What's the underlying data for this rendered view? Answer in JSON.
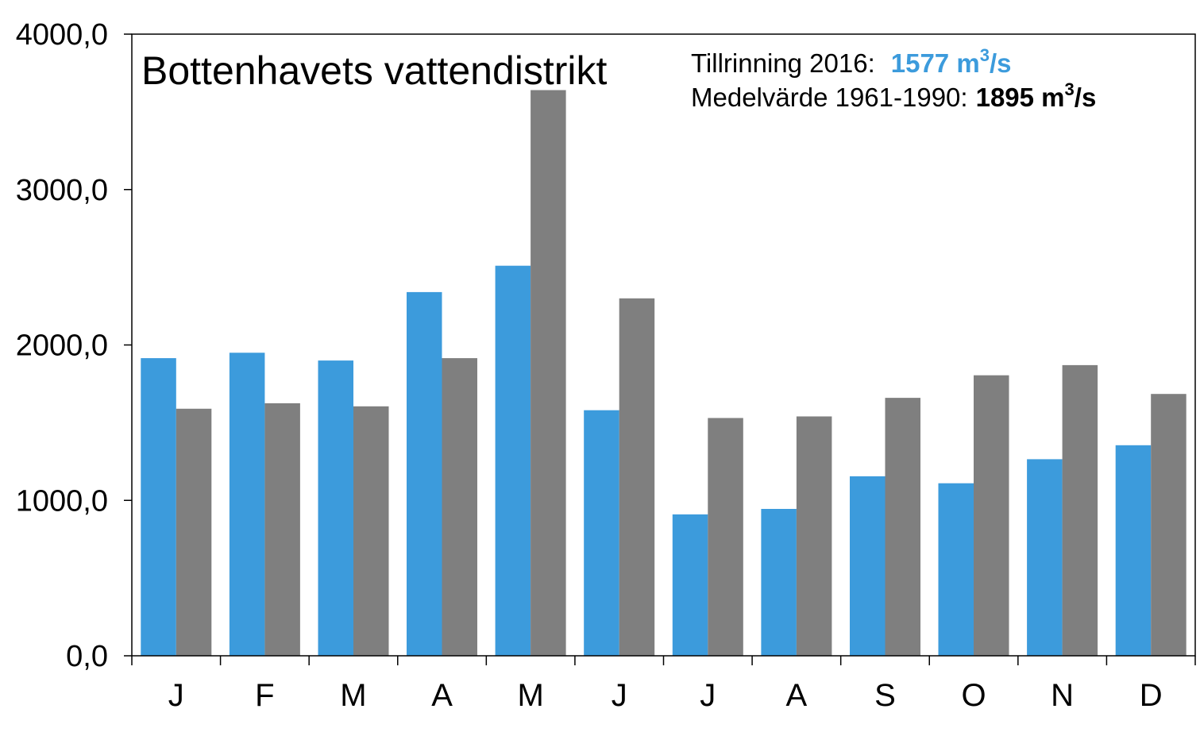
{
  "chart_data": {
    "type": "bar",
    "title": "Bottenhavets vattendistrikt",
    "categories": [
      "J",
      "F",
      "M",
      "A",
      "M",
      "J",
      "J",
      "A",
      "S",
      "O",
      "N",
      "D"
    ],
    "series": [
      {
        "color": "#3c9bdc",
        "values": [
          1915,
          1950,
          1900,
          2340,
          2510,
          1580,
          910,
          945,
          1155,
          1110,
          1265,
          1355
        ]
      },
      {
        "color": "#7f7f7f",
        "values": [
          1590,
          1625,
          1605,
          1915,
          3640,
          2300,
          1530,
          1540,
          1660,
          1805,
          1870,
          1685
        ]
      }
    ],
    "ylim": [
      0,
      4000
    ],
    "yticks": [
      "0,0",
      "1000,0",
      "2000,0",
      "3000,0",
      "4000,0"
    ],
    "xlabel": "",
    "ylabel": "",
    "grid": false,
    "annotations": {
      "line1_label": "Tillrinning 2016:",
      "line1_value": "1577 m",
      "line1_value_sup": "3",
      "line1_value_suffix": "/s",
      "line1_color": "#3c9bdc",
      "line2_label": "Medelvärde 1961-1990:",
      "line2_value": "1895 m",
      "line2_value_sup": "3",
      "line2_value_suffix": "/s",
      "line2_color": "#000000"
    }
  }
}
